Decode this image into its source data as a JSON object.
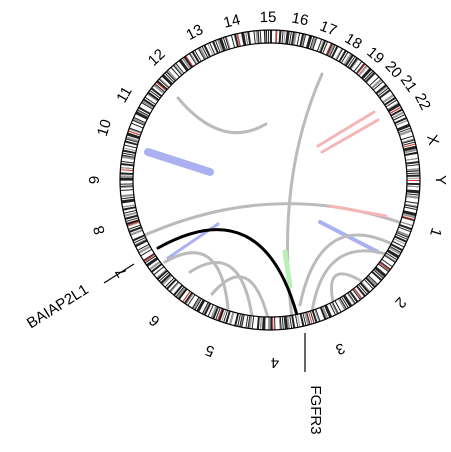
{
  "chromosomes": [
    "1",
    "2",
    "3",
    "4",
    "5",
    "6",
    "7",
    "8",
    "9",
    "10",
    "11",
    "12",
    "13",
    "14",
    "15",
    "16",
    "17",
    "18",
    "19",
    "20",
    "21",
    "22",
    "X",
    "Y"
  ],
  "genes": [
    "BAIAP2L1",
    "FGFR3"
  ]
}
